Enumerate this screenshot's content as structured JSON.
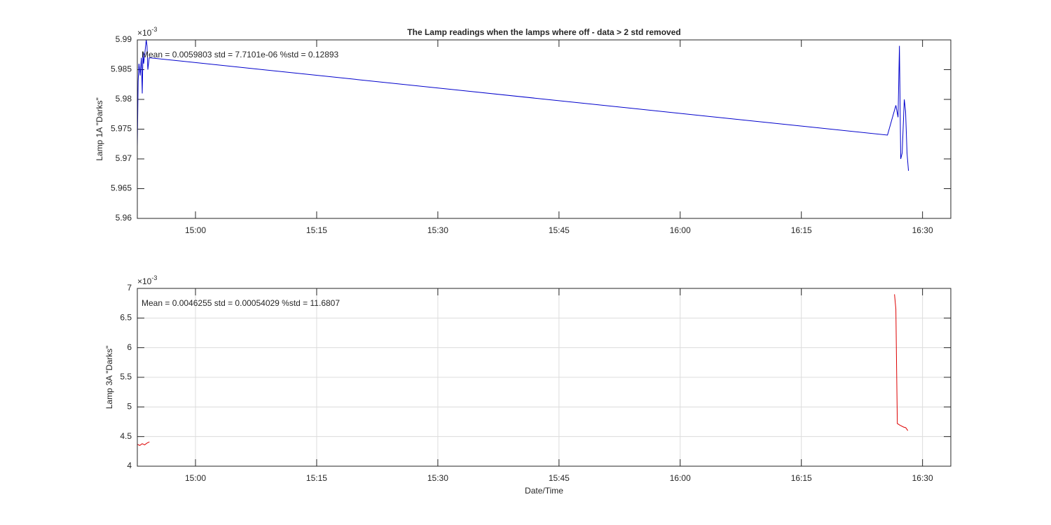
{
  "chart_data": [
    {
      "type": "line",
      "title": "The Lamp readings when the lamps where off - data > 2 std removed",
      "ylabel": "Lamp 1A \"Darks\"",
      "exponent_label": {
        "base": "×10",
        "power": "-3"
      },
      "annotation": "Mean = 0.0059803  std = 7.7101e-06  %std = 0.12893",
      "grid": false,
      "xlim": [
        892.8,
        993.5
      ],
      "xticks": [
        {
          "value": 900,
          "label": "15:00"
        },
        {
          "value": 915,
          "label": "15:15"
        },
        {
          "value": 930,
          "label": "15:30"
        },
        {
          "value": 945,
          "label": "15:45"
        },
        {
          "value": 960,
          "label": "16:00"
        },
        {
          "value": 975,
          "label": "16:15"
        },
        {
          "value": 990,
          "label": "16:30"
        }
      ],
      "ylim": [
        5.96,
        5.99
      ],
      "yticks": [
        5.96,
        5.965,
        5.97,
        5.975,
        5.98,
        5.985,
        5.99
      ],
      "x": [
        892.8,
        892.9,
        893.0,
        893.15,
        893.3,
        893.41,
        893.5,
        893.58,
        893.75,
        893.9,
        894.0,
        894.1,
        894.27,
        985.66,
        986.7,
        986.97,
        987.14,
        987.3,
        987.48,
        987.74,
        987.9,
        988.08,
        988.26
      ],
      "series": [
        {
          "color": "#0000cc",
          "values": [
            5.972,
            5.983,
            5.986,
            5.984,
            5.987,
            5.981,
            5.988,
            5.986,
            5.988,
            5.99,
            5.989,
            5.985,
            5.987,
            5.974,
            5.979,
            5.977,
            5.989,
            5.97,
            5.971,
            5.98,
            5.978,
            5.971,
            5.968
          ]
        }
      ]
    },
    {
      "type": "line",
      "xlabel": "Date/Time",
      "ylabel": "Lamp 3A \"Darks\"",
      "exponent_label": {
        "base": "×10",
        "power": "-3"
      },
      "annotation": "Mean = 0.0046255  std = 0.00054029  %std = 11.6807",
      "grid": true,
      "xlim": [
        892.8,
        993.5
      ],
      "xticks": [
        {
          "value": 900,
          "label": "15:00"
        },
        {
          "value": 915,
          "label": "15:15"
        },
        {
          "value": 930,
          "label": "15:30"
        },
        {
          "value": 945,
          "label": "15:45"
        },
        {
          "value": 960,
          "label": "16:00"
        },
        {
          "value": 975,
          "label": "16:15"
        },
        {
          "value": 990,
          "label": "16:30"
        }
      ],
      "ylim": [
        4,
        7
      ],
      "yticks": [
        4,
        4.5,
        5,
        5.5,
        6,
        6.5,
        7
      ],
      "x": [
        892.8,
        893.1,
        893.4,
        893.7,
        894.0,
        894.3,
        940,
        986.53,
        986.7,
        986.79,
        986.88,
        987.22,
        987.66,
        987.92,
        988.18
      ],
      "series": [
        {
          "color": "#dd0000",
          "values": [
            4.37,
            4.35,
            4.38,
            4.36,
            4.39,
            4.41,
            null,
            6.9,
            6.65,
            5.65,
            4.72,
            4.69,
            4.66,
            4.65,
            4.6
          ]
        }
      ]
    }
  ]
}
